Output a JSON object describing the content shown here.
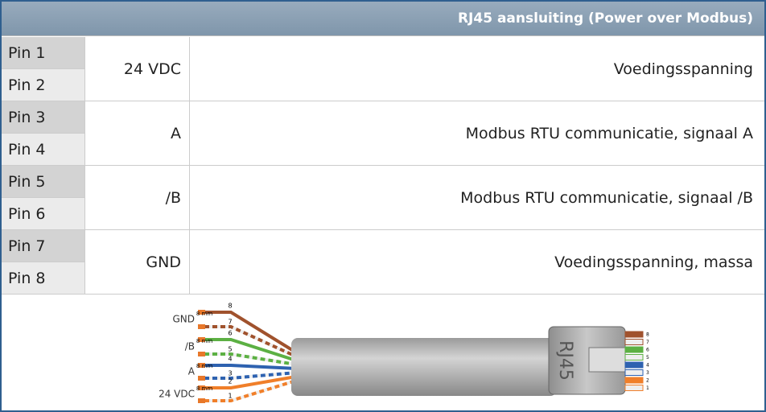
{
  "header": {
    "title": "RJ45 aansluiting (Power over Modbus)"
  },
  "table": {
    "rows": [
      {
        "pins": [
          "Pin 1",
          "Pin 2"
        ],
        "signal": "24 VDC",
        "description": "Voedingsspanning"
      },
      {
        "pins": [
          "Pin 3",
          "Pin 4"
        ],
        "signal": "A",
        "description": "Modbus RTU communicatie, signaal A"
      },
      {
        "pins": [
          "Pin 5",
          "Pin 6"
        ],
        "signal": "/B",
        "description": "Modbus RTU communicatie, signaal /B"
      },
      {
        "pins": [
          "Pin 7",
          "Pin 8"
        ],
        "signal": "GND",
        "description": "Voedingsspanning, massa"
      }
    ]
  },
  "diagram": {
    "groups": [
      {
        "label": "GND",
        "strip": "8 mm",
        "wires": [
          "8",
          "7"
        ]
      },
      {
        "label": "/B",
        "strip": "8 mm",
        "wires": [
          "6",
          "5"
        ]
      },
      {
        "label": "A",
        "strip": "8 mm",
        "wires": [
          "4",
          "3"
        ]
      },
      {
        "label": "24 VDC",
        "strip": "8 mm",
        "wires": [
          "2",
          "1"
        ]
      }
    ],
    "connector": "RJ45",
    "pins": [
      "8",
      "7",
      "6",
      "5",
      "4",
      "3",
      "2",
      "1"
    ]
  }
}
